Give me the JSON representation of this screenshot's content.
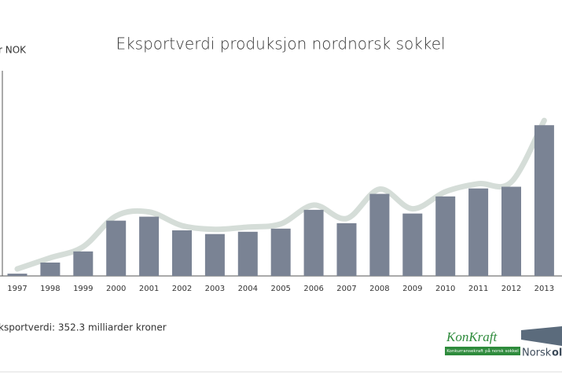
{
  "chart_data": {
    "type": "bar",
    "title": "Eksportverdi produksjon nordnorsk sokkel",
    "y_label": "r NOK",
    "annotation": "ksportverdi: 352.3 milliarder kroner",
    "categories": [
      "1997",
      "1998",
      "1999",
      "2000",
      "2001",
      "2002",
      "2003",
      "2004",
      "2005",
      "2006",
      "2007",
      "2008",
      "2009",
      "2010",
      "2011",
      "2012",
      "2013"
    ],
    "values": [
      0.8,
      4.7,
      8.6,
      19.4,
      20.8,
      16.0,
      14.7,
      15.5,
      16.6,
      23.2,
      18.5,
      28.8,
      21.9,
      27.9,
      30.7,
      31.3,
      52.9
    ],
    "color": "#7a8394",
    "trend_color": "#d5ddd8",
    "ylim": [
      0,
      72
    ]
  },
  "logos": {
    "konkraft": "KonKraft",
    "konkraft_tagline": "Konkurransekraft på norsk sokkel",
    "norsk": "Norsk",
    "olje": "olje"
  }
}
